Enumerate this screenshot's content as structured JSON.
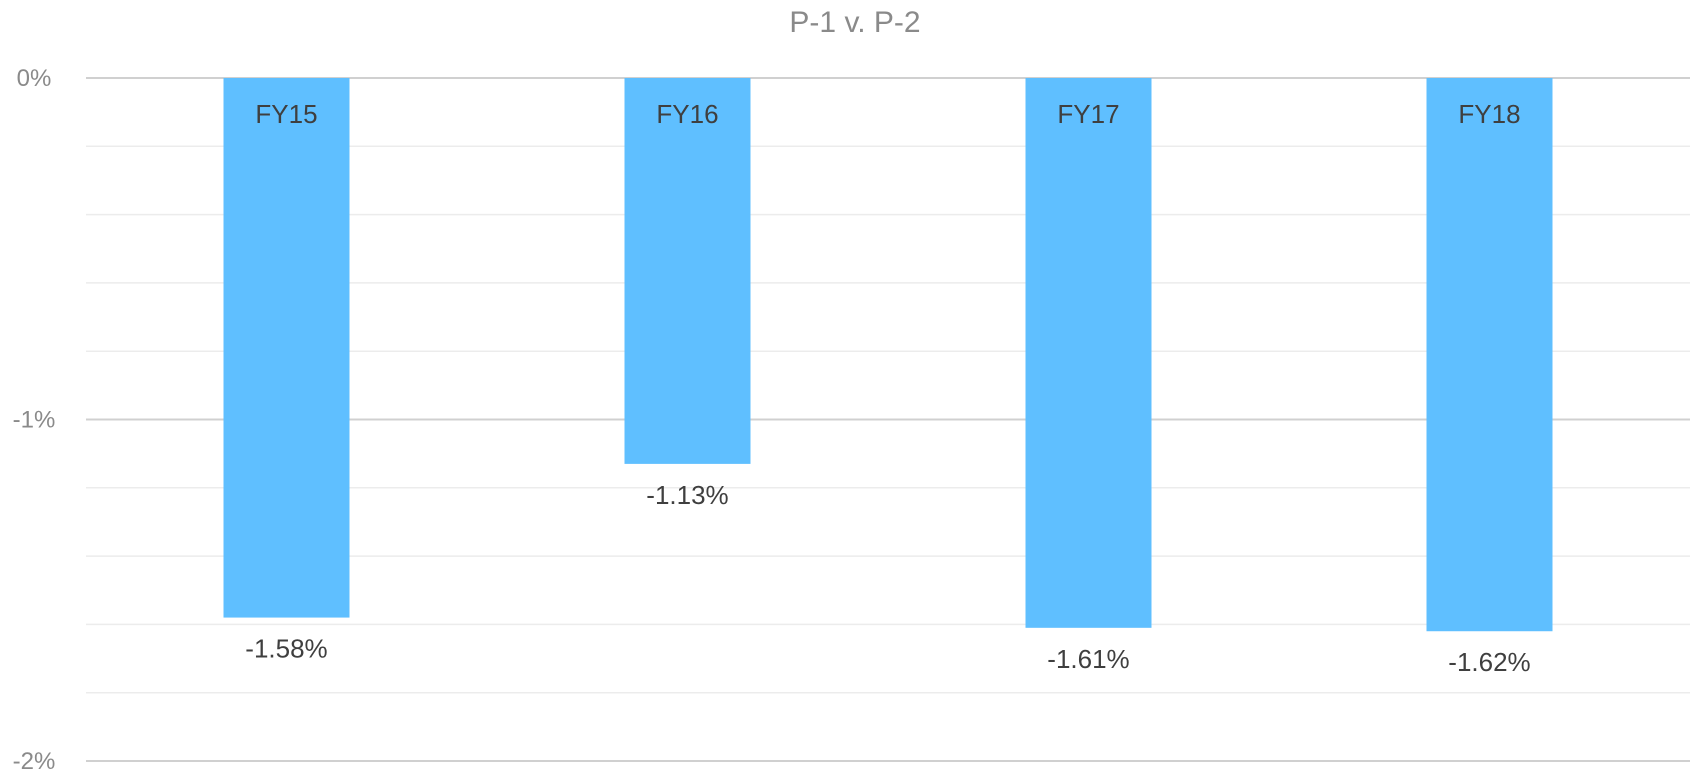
{
  "chart_data": {
    "type": "bar",
    "title": "P-1 v. P-2",
    "xlabel": "",
    "ylabel": "",
    "categories": [
      "FY15",
      "FY16",
      "FY17",
      "FY18"
    ],
    "values": [
      -1.58,
      -1.13,
      -1.61,
      -1.62
    ],
    "value_labels": [
      "-1.58%",
      "-1.13%",
      "-1.61%",
      "-1.62%"
    ],
    "ylim": [
      -2,
      0
    ],
    "y_ticks": [
      {
        "value": 0,
        "label": "0%"
      },
      {
        "value": -1,
        "label": "-1%"
      },
      {
        "value": -2,
        "label": "-2%"
      }
    ],
    "minor_gridlines": true,
    "legend": "none",
    "category_labels_position": "inside-bar-top",
    "colors": {
      "bar": "#5fbfff",
      "major_grid": "#d0d0d0",
      "minor_grid": "#ececec",
      "title": "#8a8a8a",
      "tick_text": "#8a8a8a",
      "label_text": "#3f3f3f"
    }
  }
}
